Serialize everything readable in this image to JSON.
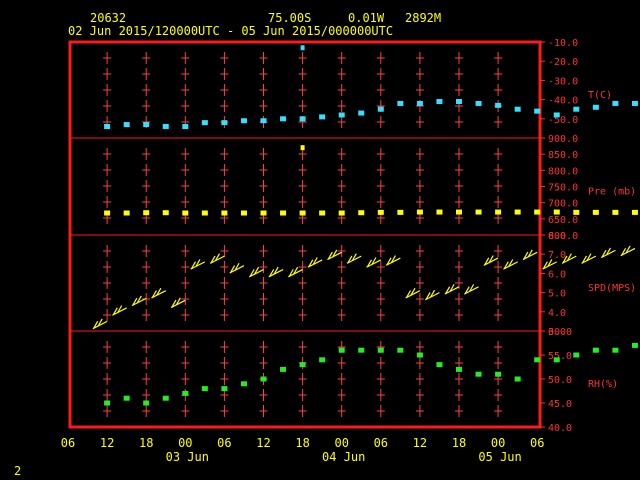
{
  "header": {
    "station": "20632",
    "lat": "75.00S",
    "lon": "0.01W",
    "elev": "2892M",
    "period": "02 Jun 2015/120000UTC - 05 Jun 2015/000000UTC"
  },
  "footer": {
    "page": "2"
  },
  "colors": {
    "frame": "#ff1a1a",
    "label": "#ff3030",
    "axis_text": "#ffff00",
    "temp": "#33e0ff",
    "pressure": "#ffff00",
    "wind": "#ffff00",
    "rh": "#22ee22"
  },
  "chart_data": {
    "type": "scatter",
    "x_unit": "hours since 02 Jun 2015 12 UTC",
    "x_ticks": [
      "06",
      "12",
      "18",
      "00",
      "06",
      "12",
      "18",
      "00",
      "06",
      "12",
      "18",
      "00",
      "06"
    ],
    "day_labels": [
      "03 Jun",
      "04 Jun",
      "05 Jun"
    ],
    "panels": [
      {
        "label": "T(C)",
        "ylim": [
          -60,
          -10
        ],
        "ticks": [
          "-10.0",
          "-20.0",
          "-30.0",
          "-40.0",
          "-50.0"
        ],
        "x": [
          0,
          3,
          6,
          9,
          12,
          15,
          18,
          21,
          24,
          27,
          30,
          33,
          36,
          39,
          42,
          45,
          48,
          51,
          54,
          57,
          60,
          63,
          66,
          69,
          72,
          75,
          78,
          81,
          84
        ],
        "y": [
          -54,
          -53,
          -53,
          -54,
          -54,
          -52,
          -52,
          -51,
          -51,
          -50,
          -50,
          -49,
          -48,
          -47,
          -45,
          -42,
          -42,
          -41,
          -41,
          -42,
          -43,
          -45,
          -46,
          -48,
          -45,
          -44,
          -42,
          -42,
          -41
        ],
        "outliers": [
          {
            "x": 30,
            "y": -13
          }
        ]
      },
      {
        "label": "Pre (mb)",
        "ylim": [
          600,
          900
        ],
        "ticks": [
          "900.0",
          "850.0",
          "800.0",
          "750.0",
          "700.0",
          "650.0",
          "600.0"
        ],
        "x": [
          0,
          3,
          6,
          9,
          12,
          15,
          18,
          21,
          24,
          27,
          30,
          33,
          36,
          39,
          42,
          45,
          48,
          51,
          54,
          57,
          60,
          63,
          66,
          69,
          72,
          75,
          78,
          81,
          84
        ],
        "y": [
          668,
          668,
          669,
          669,
          668,
          668,
          668,
          668,
          668,
          668,
          668,
          668,
          668,
          669,
          670,
          670,
          671,
          671,
          671,
          671,
          671,
          671,
          671,
          671,
          670,
          670,
          670,
          670,
          670
        ],
        "outliers": [
          {
            "x": 30,
            "y": 870
          }
        ]
      },
      {
        "label": "SPD(MPS)",
        "ylim": [
          3,
          8
        ],
        "ticks": [
          "8.0",
          "7.0",
          "6.0",
          "5.0",
          "4.0",
          "3.0"
        ],
        "x": [
          0,
          3,
          6,
          9,
          12,
          15,
          18,
          21,
          24,
          27,
          30,
          33,
          36,
          39,
          42,
          45,
          48,
          51,
          54,
          57,
          60,
          63,
          66,
          69,
          72,
          75,
          78,
          81,
          84
        ],
        "y": [
          3.5,
          4.2,
          4.7,
          5.1,
          4.6,
          6.6,
          6.9,
          6.4,
          6.2,
          6.2,
          6.2,
          6.7,
          7.1,
          6.9,
          6.7,
          6.8,
          5.1,
          5.0,
          5.3,
          5.3,
          6.8,
          6.6,
          7.1,
          6.6,
          6.9,
          6.9,
          7.2,
          7.3,
          6.8
        ]
      },
      {
        "label": "RH(%)",
        "ylim": [
          40,
          60
        ],
        "ticks": [
          "60.0",
          "55.0",
          "50.0",
          "45.0",
          "40.0"
        ],
        "x": [
          0,
          3,
          6,
          9,
          12,
          15,
          18,
          21,
          24,
          27,
          30,
          33,
          36,
          39,
          42,
          45,
          48,
          51,
          54,
          57,
          60,
          63,
          66,
          69,
          72,
          75,
          78,
          81,
          84
        ],
        "y": [
          45,
          46,
          45,
          46,
          47,
          48,
          48,
          49,
          50,
          52,
          53,
          54,
          56,
          56,
          56,
          56,
          55,
          53,
          52,
          51,
          51,
          50,
          54,
          54,
          55,
          56,
          56,
          57,
          58
        ]
      }
    ]
  }
}
